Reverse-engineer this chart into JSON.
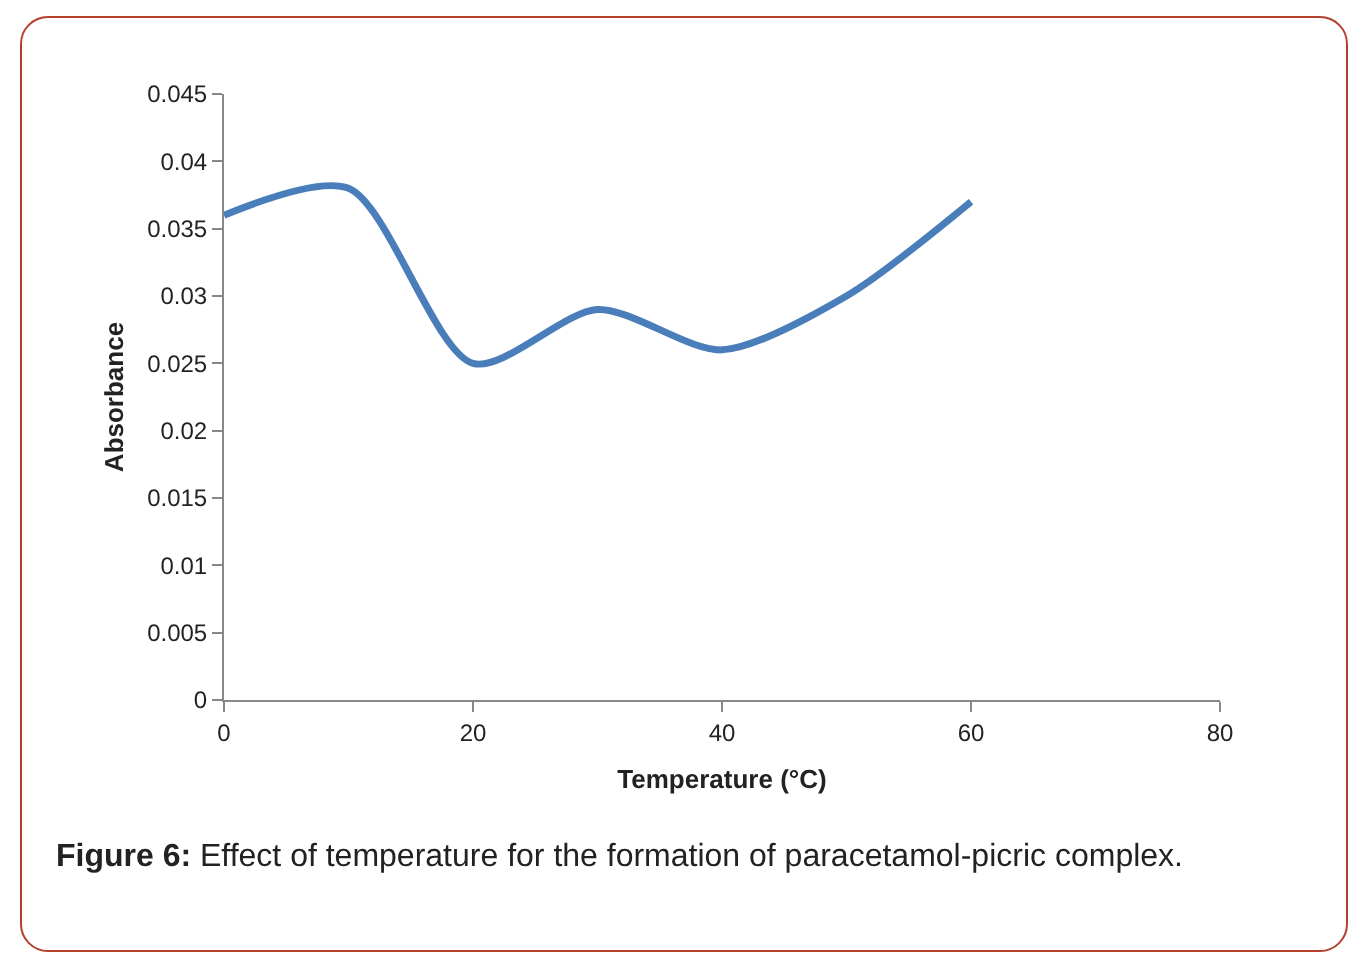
{
  "chart_data": {
    "type": "line",
    "xlabel": "Temperature (°C)",
    "ylabel": "Absorbance",
    "x": [
      0,
      10,
      20,
      30,
      40,
      50,
      60
    ],
    "series": [
      {
        "color": "#4a7ebb",
        "values": [
          0.036,
          0.038,
          0.025,
          0.029,
          0.026,
          0.03,
          0.037
        ]
      }
    ],
    "xlim": [
      0,
      80
    ],
    "xticks": [
      0,
      20,
      40,
      60,
      80
    ],
    "ylim": [
      0,
      0.045
    ],
    "yticks": [
      0,
      0.005,
      0.01,
      0.015,
      0.02,
      0.025,
      0.03,
      0.035,
      0.04,
      0.045
    ],
    "grid": false,
    "marker": "none",
    "line_style": "solid",
    "annotations": [
      "Figure 6: Effect of temperature for the formation of paracetamol-picric complex."
    ]
  }
}
